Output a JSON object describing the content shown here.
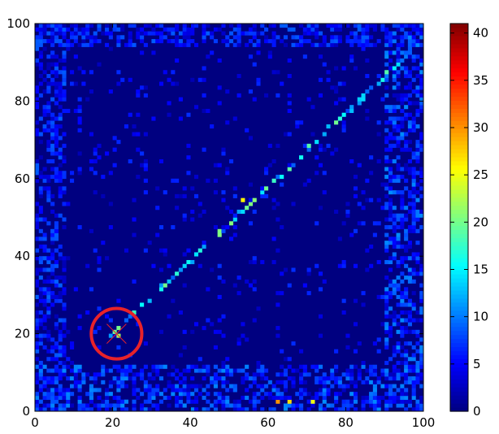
{
  "chart_data": {
    "type": "heatmap",
    "title": "",
    "xlabel": "",
    "ylabel": "",
    "xlim": [
      0,
      100
    ],
    "ylim": [
      0,
      100
    ],
    "x_ticks": [
      "0",
      "20",
      "40",
      "60",
      "80",
      "100"
    ],
    "y_ticks": [
      "0",
      "20",
      "40",
      "60",
      "80",
      "100"
    ],
    "x_tick_values": [
      0,
      20,
      40,
      60,
      80,
      100
    ],
    "y_tick_values": [
      0,
      20,
      40,
      60,
      80,
      100
    ],
    "grid": false,
    "grid_resolution": [
      100,
      100
    ],
    "colormap": "jet",
    "colorbar": {
      "min": 0,
      "max": 41,
      "ticks": [
        "0",
        "5",
        "10",
        "15",
        "20",
        "25",
        "30",
        "35",
        "40"
      ],
      "tick_values": [
        0,
        5,
        10,
        15,
        20,
        25,
        30,
        35,
        40
      ]
    },
    "features": {
      "diagonal_band": {
        "from": [
          19,
          19
        ],
        "to": [
          96,
          92
        ],
        "typical_value": 15
      },
      "hot_cells": [
        {
          "x": 53,
          "y": 54,
          "value": 26
        },
        {
          "x": 21,
          "y": 19,
          "value": 22
        },
        {
          "x": 65,
          "y": 2,
          "value": 27
        },
        {
          "x": 62,
          "y": 2,
          "value": 30
        },
        {
          "x": 71,
          "y": 2,
          "value": 25
        }
      ],
      "dense_regions": [
        {
          "description": "bottom edge",
          "x_range": [
            0,
            100
          ],
          "y_range": [
            0,
            12
          ],
          "typical_value": 6
        },
        {
          "description": "left edge",
          "x_range": [
            0,
            8
          ],
          "y_range": [
            0,
            100
          ],
          "typical_value": 5
        },
        {
          "description": "right edge",
          "x_range": [
            90,
            100
          ],
          "y_range": [
            0,
            100
          ],
          "typical_value": 6
        },
        {
          "description": "top edge",
          "x_range": [
            0,
            100
          ],
          "y_range": [
            94,
            100
          ],
          "typical_value": 5
        }
      ]
    },
    "annotations": [
      {
        "type": "circle",
        "center": [
          21,
          20
        ],
        "radius": 6.5,
        "color": "#e8222a"
      },
      {
        "type": "cross",
        "center": [
          21,
          20
        ],
        "color": "#e8222a"
      }
    ]
  }
}
